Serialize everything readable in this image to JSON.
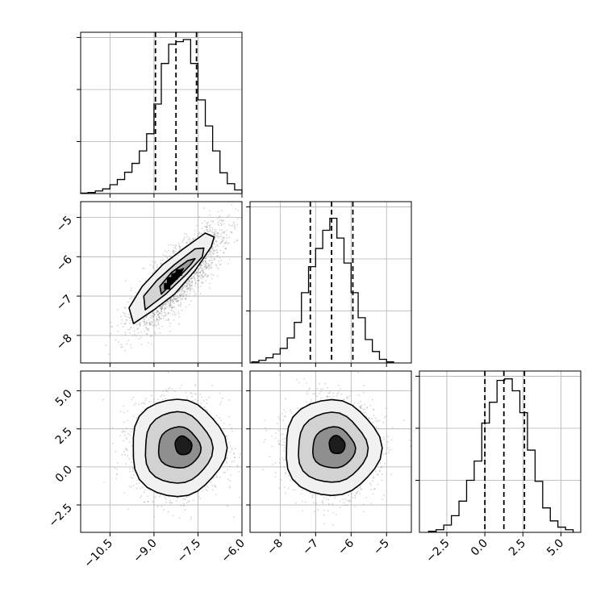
{
  "chart_data": [
    {
      "panel": "hist-x",
      "type": "histogram",
      "xlim": [
        -11.5,
        -6.0
      ],
      "x_ticks": [
        -10.5,
        -9.0,
        -7.5,
        -6.0
      ],
      "y_ticks": [
        1,
        2,
        3
      ],
      "quantiles": [
        -8.95,
        -8.25,
        -7.55
      ],
      "bins": [
        [
          -11.5,
          -11.25,
          0.01
        ],
        [
          -11.25,
          -11.0,
          0.02
        ],
        [
          -11.0,
          -10.75,
          0.05
        ],
        [
          -10.75,
          -10.5,
          0.09
        ],
        [
          -10.5,
          -10.25,
          0.17
        ],
        [
          -10.25,
          -10.0,
          0.27
        ],
        [
          -10.0,
          -9.75,
          0.41
        ],
        [
          -9.75,
          -9.5,
          0.58
        ],
        [
          -9.5,
          -9.25,
          0.82
        ],
        [
          -9.25,
          -9.0,
          1.15
        ],
        [
          -9.0,
          -8.75,
          1.72
        ],
        [
          -8.75,
          -8.5,
          2.5
        ],
        [
          -8.5,
          -8.25,
          2.87
        ],
        [
          -8.25,
          -8.0,
          2.92
        ],
        [
          -8.0,
          -7.75,
          2.96
        ],
        [
          -7.75,
          -7.5,
          2.5
        ],
        [
          -7.5,
          -7.25,
          1.8
        ],
        [
          -7.25,
          -7.0,
          1.3
        ],
        [
          -7.0,
          -6.75,
          0.82
        ],
        [
          -6.75,
          -6.5,
          0.4
        ],
        [
          -6.5,
          -6.25,
          0.19
        ],
        [
          -6.25,
          -6.0,
          0.07
        ]
      ]
    },
    {
      "panel": "scatter-x-y",
      "type": "contour-scatter",
      "xlim": [
        -11.5,
        -6.0
      ],
      "ylim": [
        -8.7,
        -4.6
      ],
      "y_ticks": [
        -5,
        -6,
        -7,
        -8
      ],
      "center": [
        -8.2,
        -6.55
      ],
      "contours": [
        [
          [
            -9.7,
            -7.7
          ],
          [
            -9.0,
            -7.35
          ],
          [
            -8.3,
            -6.95
          ],
          [
            -7.6,
            -6.35
          ],
          [
            -7.05,
            -5.75
          ],
          [
            -6.95,
            -5.5
          ],
          [
            -7.25,
            -5.4
          ],
          [
            -8.0,
            -5.8
          ],
          [
            -8.7,
            -6.2
          ],
          [
            -9.4,
            -6.75
          ],
          [
            -9.85,
            -7.3
          ]
        ],
        [
          [
            -9.3,
            -7.35
          ],
          [
            -8.6,
            -6.95
          ],
          [
            -7.9,
            -6.45
          ],
          [
            -7.35,
            -6.0
          ],
          [
            -7.3,
            -5.78
          ],
          [
            -7.6,
            -5.8
          ],
          [
            -8.3,
            -6.2
          ],
          [
            -8.9,
            -6.6
          ],
          [
            -9.35,
            -7.0
          ]
        ],
        [
          [
            -8.75,
            -6.95
          ],
          [
            -8.2,
            -6.55
          ],
          [
            -7.75,
            -6.2
          ],
          [
            -7.6,
            -6.05
          ],
          [
            -7.85,
            -6.1
          ],
          [
            -8.4,
            -6.4
          ],
          [
            -8.8,
            -6.75
          ]
        ],
        [
          [
            -8.45,
            -6.7
          ],
          [
            -8.1,
            -6.45
          ],
          [
            -8.0,
            -6.3
          ],
          [
            -8.25,
            -6.4
          ],
          [
            -8.5,
            -6.6
          ]
        ]
      ]
    },
    {
      "panel": "hist-y",
      "type": "histogram",
      "xlim": [
        -8.85,
        -4.3
      ],
      "x_ticks": [
        -8,
        -7,
        -6,
        -5
      ],
      "quantiles": [
        -7.15,
        -6.55,
        -5.95
      ],
      "bins": [
        [
          -8.8,
          -8.6,
          0.02
        ],
        [
          -8.6,
          -8.4,
          0.05
        ],
        [
          -8.4,
          -8.2,
          0.1
        ],
        [
          -8.2,
          -8.0,
          0.17
        ],
        [
          -8.0,
          -7.8,
          0.28
        ],
        [
          -7.8,
          -7.6,
          0.48
        ],
        [
          -7.6,
          -7.4,
          0.78
        ],
        [
          -7.4,
          -7.2,
          1.35
        ],
        [
          -7.2,
          -7.0,
          1.85
        ],
        [
          -7.0,
          -6.8,
          2.2
        ],
        [
          -6.8,
          -6.6,
          2.55
        ],
        [
          -6.6,
          -6.4,
          2.78
        ],
        [
          -6.4,
          -6.2,
          2.4
        ],
        [
          -6.2,
          -6.0,
          1.92
        ],
        [
          -6.0,
          -5.8,
          1.35
        ],
        [
          -5.8,
          -5.6,
          0.87
        ],
        [
          -5.6,
          -5.4,
          0.45
        ],
        [
          -5.4,
          -5.2,
          0.22
        ],
        [
          -5.2,
          -5.0,
          0.07
        ],
        [
          -5.0,
          -4.8,
          0.02
        ]
      ]
    },
    {
      "panel": "scatter-x-z",
      "type": "contour-scatter",
      "xlim": [
        -11.5,
        -6.0
      ],
      "ylim": [
        -4.3,
        6.3
      ],
      "y_ticks": [
        5.0,
        2.5,
        0.0,
        -2.5
      ],
      "center": [
        -8.2,
        1.25
      ],
      "contours": "ellipses"
    },
    {
      "panel": "scatter-y-z",
      "type": "contour-scatter",
      "xlim": [
        -8.85,
        -4.3
      ],
      "ylim": [
        -4.3,
        6.3
      ],
      "center": [
        -6.55,
        1.25
      ],
      "contours": "ellipses"
    },
    {
      "panel": "hist-z",
      "type": "histogram",
      "xlim": [
        -4.3,
        6.3
      ],
      "x_ticks": [
        -2.5,
        0.0,
        2.5,
        5.0
      ],
      "quantiles": [
        0.0,
        1.25,
        2.6
      ],
      "bins": [
        [
          -3.7,
          -3.2,
          0.02
        ],
        [
          -3.2,
          -2.7,
          0.05
        ],
        [
          -2.7,
          -2.2,
          0.14
        ],
        [
          -2.2,
          -1.7,
          0.32
        ],
        [
          -1.7,
          -1.2,
          0.6
        ],
        [
          -1.2,
          -0.7,
          1.0
        ],
        [
          -0.7,
          -0.2,
          1.37
        ],
        [
          -0.2,
          0.3,
          2.1
        ],
        [
          0.3,
          0.8,
          2.5
        ],
        [
          0.8,
          1.3,
          2.92
        ],
        [
          1.3,
          1.8,
          2.95
        ],
        [
          1.8,
          2.3,
          2.72
        ],
        [
          2.3,
          2.8,
          2.3
        ],
        [
          2.8,
          3.3,
          1.58
        ],
        [
          3.3,
          3.8,
          0.98
        ],
        [
          3.8,
          4.3,
          0.47
        ],
        [
          4.3,
          4.8,
          0.22
        ],
        [
          4.8,
          5.3,
          0.1
        ],
        [
          5.3,
          5.8,
          0.05
        ]
      ]
    }
  ],
  "tick_labels": {
    "hist_x_y": [
      "",
      "",
      ""
    ],
    "row2_y": [
      "−5",
      "−6",
      "−7",
      "−8"
    ],
    "row3_y": [
      "5.0",
      "2.5",
      "0.0",
      "−2.5"
    ],
    "col1_x": [
      "−10.5",
      "−9.0",
      "−7.5",
      "−6.0"
    ],
    "col2_x": [
      "−8",
      "−7",
      "−6",
      "−5"
    ],
    "col3_x": [
      "−2.5",
      "0.0",
      "2.5",
      "5.0"
    ]
  },
  "colors": {
    "axes": "#000000",
    "grid": "#b0b0b0",
    "points": "#888888"
  }
}
